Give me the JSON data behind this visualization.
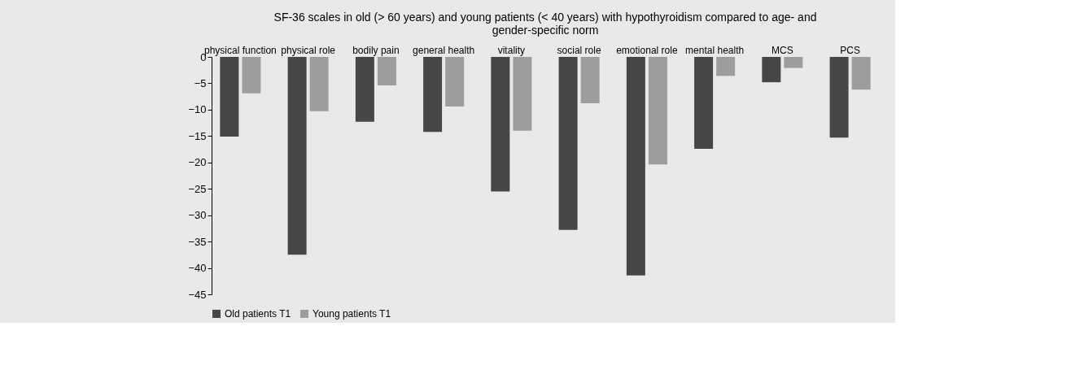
{
  "chart_data": {
    "type": "bar",
    "title": "SF-36 scales in old (> 60 years) and young patients (< 40 years) with hypothyroidism compared to age- and gender-specific norm",
    "categories": [
      "physical function",
      "physical role",
      "bodily pain",
      "general health",
      "vitality",
      "social role",
      "emotional role",
      "mental health",
      "MCS",
      "PCS"
    ],
    "series": [
      {
        "name": "Old patients T1",
        "color": "#464646",
        "values": [
          -15.1,
          -37.5,
          -12.3,
          -14.2,
          -25.5,
          -32.8,
          -41.4,
          -17.4,
          -4.8,
          -15.3
        ]
      },
      {
        "name": "Young patients T1",
        "color": "#9d9d9d",
        "values": [
          -6.9,
          -10.3,
          -5.4,
          -9.4,
          -14.0,
          -8.8,
          -20.4,
          -3.6,
          -2.1,
          -6.2
        ]
      }
    ],
    "ylim": [
      -45,
      0
    ],
    "yticks": [
      0,
      -5,
      -10,
      -15,
      -20,
      -25,
      -30,
      -35,
      -40,
      -45
    ],
    "grid": false,
    "legend": "bottom"
  }
}
